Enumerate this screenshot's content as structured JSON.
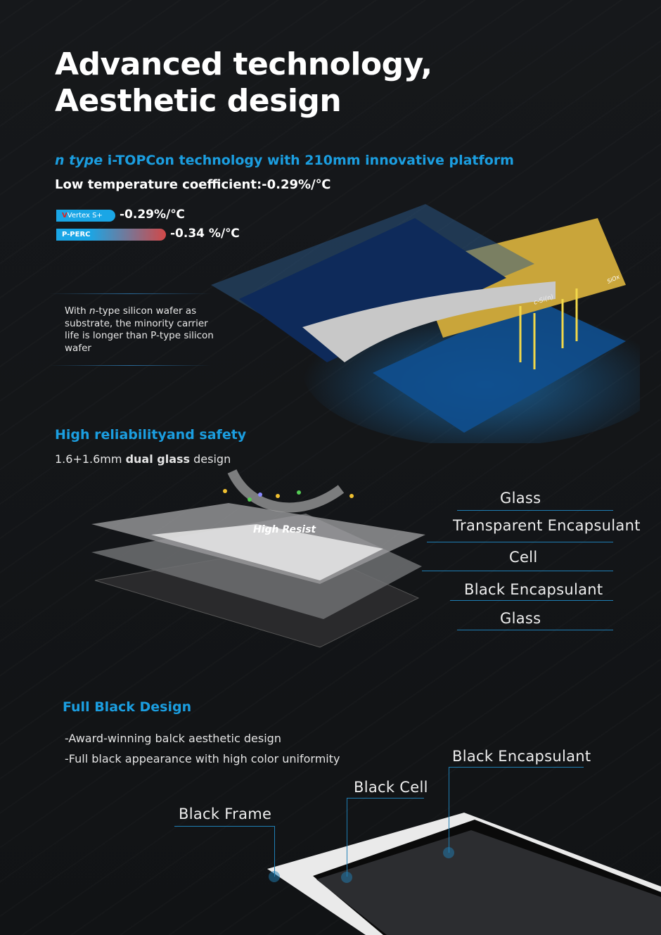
{
  "title": {
    "line1": "Advanced technology,",
    "line2": "Aesthetic design"
  },
  "topcon": {
    "heading_italic": "n type",
    "heading_rest": " i-TOPCon technology with 210mm innovative platform",
    "temp_coeff": "Low temperature coefficient:-0.29%/℃",
    "bars": [
      {
        "label": "Vertex S+",
        "value": "-0.29%/℃",
        "fraction": 0.55
      },
      {
        "label": "P-PERC",
        "value": "-0.34 %/℃",
        "fraction": 1.0
      }
    ],
    "note_pre": "With ",
    "note_italic": "n",
    "note_post": "-type silicon wafer as substrate, the minority carrier life is longer than P-type silicon wafer",
    "diagram_labels": {
      "layer1": "c-Si(n)",
      "layer2": "SiOx"
    }
  },
  "reliability": {
    "heading": "High reliabilityand safety",
    "desc_pre": "1.6+1.6mm ",
    "desc_bold": "dual glass",
    "desc_post": " design",
    "resist_label": "High Resist",
    "layers": [
      "Glass",
      "Transparent Encapsulant",
      "Cell",
      "Black Encapsulant",
      "Glass"
    ]
  },
  "black": {
    "heading": "Full Black Design",
    "bullets": [
      "-Award-winning balck aesthetic design",
      "-Full black appearance with high color uniformity"
    ],
    "callouts": [
      "Black Encapsulant",
      "Black Cell",
      "Black Frame"
    ]
  },
  "colors": {
    "accent": "#1b9ee0",
    "background": "#141619"
  }
}
